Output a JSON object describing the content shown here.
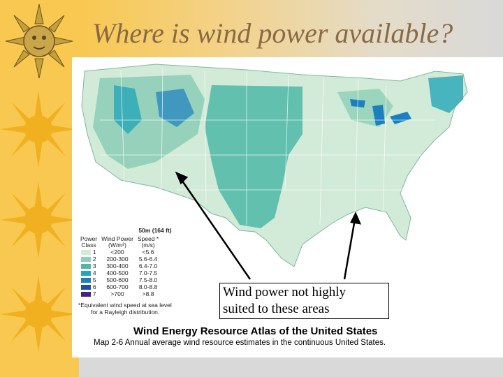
{
  "slide": {
    "title": "Where is wind power available?"
  },
  "legend": {
    "heading": "50m (164 ft)",
    "col_headers": [
      "Power\nClass",
      "Wind Power\n(W/m²)",
      "Speed *\n(m/s)"
    ],
    "rows": [
      {
        "cls": "1",
        "power": "<200",
        "speed": "<5.6",
        "color": "#d2ead8"
      },
      {
        "cls": "2",
        "power": "200-300",
        "speed": "5.6-6.4",
        "color": "#8fcfb8"
      },
      {
        "cls": "3",
        "power": "300-400",
        "speed": "6.4-7.0",
        "color": "#4fb8a8"
      },
      {
        "cls": "4",
        "power": "400-500",
        "speed": "7.0-7.5",
        "color": "#26a6b8"
      },
      {
        "cls": "5",
        "power": "500-600",
        "speed": "7.5-8.0",
        "color": "#1c7fc0"
      },
      {
        "cls": "6",
        "power": "600-700",
        "speed": "8.0-8.8",
        "color": "#1a50a8"
      },
      {
        "cls": "7",
        "power": ">700",
        "speed": ">8.8",
        "color": "#4a2080"
      }
    ],
    "footnote_line1": "*Equivalent wind speed at sea level",
    "footnote_line2": "for a Rayleigh distribution."
  },
  "annotation": {
    "text_line1": "Wind power not highly",
    "text_line2": "suited to these areas"
  },
  "atlas": {
    "title": "Wind Energy Resource Atlas of the United States",
    "caption": "Map 2-6 Annual average wind resource estimates in the continuous United States."
  }
}
